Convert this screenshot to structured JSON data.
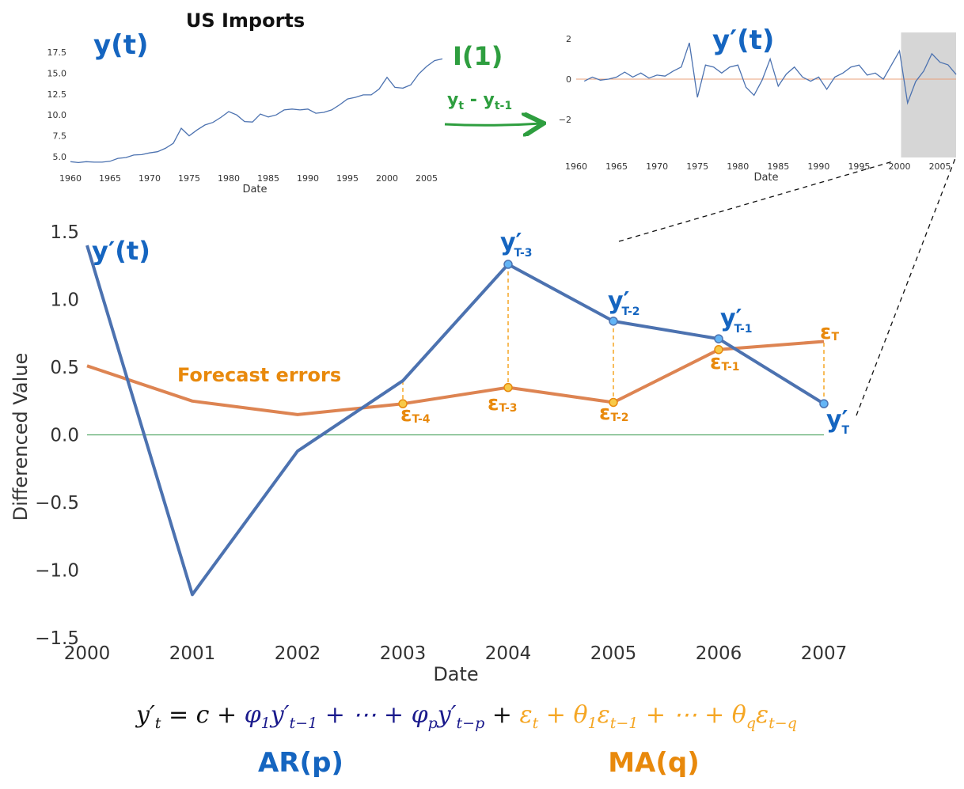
{
  "colors": {
    "line_blue": "#4c72b0",
    "line_orange": "#dd8452",
    "hand_blue": "#1565c0",
    "hand_green": "#2e9e3f",
    "hand_orange": "#e8890c",
    "zero_green": "#55a868",
    "zero_salmon": "#e8a07a",
    "shade": "#d6d6d6",
    "formula_navy": "#1a1a8c",
    "formula_orange": "#f5a623"
  },
  "chart_data": [
    {
      "type": "line",
      "title": "US Imports",
      "xlabel": "Date",
      "xlim": [
        1960,
        2007
      ],
      "ylim": [
        4.0,
        18.6
      ],
      "xticks": [
        1960,
        1965,
        1970,
        1975,
        1980,
        1985,
        1990,
        1995,
        2000,
        2005
      ],
      "yticks": [
        "5.0",
        "7.5",
        "10.0",
        "12.5",
        "15.0",
        "17.5"
      ],
      "yticks_values": [
        5.0,
        7.5,
        10.0,
        12.5,
        15.0,
        17.5
      ],
      "annotation": "y(t)",
      "series": [
        {
          "x": [
            1960,
            1961,
            1962,
            1963,
            1964,
            1965,
            1966,
            1967,
            1968,
            1969,
            1970,
            1971,
            1972,
            1973,
            1974,
            1975,
            1976,
            1977,
            1978,
            1979,
            1980,
            1981,
            1982,
            1983,
            1984,
            1985,
            1986,
            1987,
            1988,
            1989,
            1990,
            1991,
            1992,
            1993,
            1994,
            1995,
            1996,
            1997,
            1998,
            1999,
            2000,
            2001,
            2002,
            2003,
            2004,
            2005,
            2006,
            2007
          ],
          "values": [
            4.4,
            4.3,
            4.4,
            4.35,
            4.35,
            4.45,
            4.8,
            4.9,
            5.2,
            5.25,
            5.45,
            5.6,
            6.0,
            6.6,
            8.4,
            7.5,
            8.2,
            8.8,
            9.1,
            9.7,
            10.4,
            10.0,
            9.2,
            9.15,
            10.1,
            9.75,
            10.0,
            10.6,
            10.7,
            10.6,
            10.7,
            10.2,
            10.3,
            10.6,
            11.2,
            11.9,
            12.1,
            12.4,
            12.4,
            13.1,
            14.5,
            13.3,
            13.2,
            13.6,
            14.9,
            15.8,
            16.5,
            16.7
          ]
        }
      ]
    },
    {
      "type": "line",
      "title": "",
      "xlabel": "Date",
      "xlim": [
        1960,
        2007
      ],
      "ylim": [
        -3.9,
        2.3
      ],
      "xticks": [
        1960,
        1965,
        1970,
        1975,
        1980,
        1985,
        1990,
        1995,
        2000,
        2005
      ],
      "yticks": [
        "2",
        "0",
        "−2"
      ],
      "yticks_values": [
        2,
        0,
        -2
      ],
      "annotation": "y′(t)",
      "highlight_range": [
        2000,
        2007
      ],
      "series": [
        {
          "x": [
            1961,
            1962,
            1963,
            1964,
            1965,
            1966,
            1967,
            1968,
            1969,
            1970,
            1971,
            1972,
            1973,
            1974,
            1975,
            1976,
            1977,
            1978,
            1979,
            1980,
            1981,
            1982,
            1983,
            1984,
            1985,
            1986,
            1987,
            1988,
            1989,
            1990,
            1991,
            1992,
            1993,
            1994,
            1995,
            1996,
            1997,
            1998,
            1999,
            2000,
            2001,
            2002,
            2003,
            2004,
            2005,
            2006,
            2007
          ],
          "values": [
            -0.1,
            0.1,
            -0.05,
            0.0,
            0.1,
            0.35,
            0.1,
            0.3,
            0.05,
            0.2,
            0.15,
            0.4,
            0.6,
            1.8,
            -0.9,
            0.7,
            0.6,
            0.3,
            0.6,
            0.7,
            -0.4,
            -0.8,
            -0.05,
            1.0,
            -0.35,
            0.25,
            0.6,
            0.1,
            -0.1,
            0.1,
            -0.5,
            0.1,
            0.3,
            0.6,
            0.7,
            0.2,
            0.3,
            0.0,
            0.7,
            1.4,
            -1.18,
            -0.12,
            0.4,
            1.26,
            0.84,
            0.71,
            0.23
          ]
        }
      ]
    },
    {
      "type": "line",
      "title": "",
      "xlabel": "Date",
      "ylabel": "Differenced Value",
      "xlim": [
        2000,
        2007
      ],
      "ylim": [
        -1.5,
        1.5
      ],
      "xticks": [
        "2000",
        "2001",
        "2002",
        "2003",
        "2004",
        "2005",
        "2006",
        "2007"
      ],
      "xticks_values": [
        2000,
        2001,
        2002,
        2003,
        2004,
        2005,
        2006,
        2007
      ],
      "yticks": [
        "1.5",
        "1.0",
        "0.5",
        "0.0",
        "−0.5",
        "−1.0",
        "−1.5"
      ],
      "yticks_values": [
        1.5,
        1.0,
        0.5,
        0.0,
        -0.5,
        -1.0,
        -1.5
      ],
      "grid": false,
      "series": [
        {
          "name": "y′(t)",
          "x": [
            2000,
            2001,
            2002,
            2003,
            2004,
            2005,
            2006,
            2007
          ],
          "values": [
            1.4,
            -1.18,
            -0.12,
            0.4,
            1.26,
            0.84,
            0.71,
            0.23
          ]
        },
        {
          "name": "Forecast errors",
          "x": [
            2000,
            2001,
            2002,
            2003,
            2004,
            2005,
            2006,
            2007
          ],
          "values": [
            0.51,
            0.25,
            0.15,
            0.23,
            0.35,
            0.24,
            0.63,
            0.69
          ]
        }
      ],
      "markers": {
        "blue_x": [
          2004,
          2005,
          2006,
          2007
        ],
        "orange_x": [
          2003,
          2004,
          2005,
          2006
        ]
      }
    }
  ],
  "labels": {
    "top_left_title": "US Imports",
    "top_left_y": "y(t)",
    "transform": "I(1)",
    "diff_lhs": "y",
    "diff_lhs_sub": "t",
    "diff_minus": " - y",
    "diff_rhs_sub": "t-1",
    "top_right_y": "y′(t)",
    "main_y": "y′(t)",
    "forecast": "Forecast errors",
    "y_t3": "y′",
    "y_t3_sub": "T-3",
    "y_t2": "y′",
    "y_t2_sub": "T-2",
    "y_t1": "y′",
    "y_t1_sub": "T-1",
    "y_t": "y′",
    "y_t_sub": "T",
    "e_t4": "ε",
    "e_t4_sub": "T-4",
    "e_t3": "ε",
    "e_t3_sub": "T-3",
    "e_t2": "ε",
    "e_t2_sub": "T-2",
    "e_t1": "ε",
    "e_t1_sub": "T-1",
    "e_t": "ε",
    "e_t_sub": "T",
    "ar": "AR(p)",
    "ma": "MA(q)"
  },
  "formula": {
    "lhs": "y′",
    "lhs_sub": "t",
    "eq": " = c + ",
    "phi1": "φ",
    "phi1_sub": "1",
    "y1": "y′",
    "y1_sub": "t−1",
    "dots1": " + ⋯ + ",
    "phip": "φ",
    "phip_sub": "p",
    "yp": "y′",
    "yp_sub": "t−p",
    "plus": " + ",
    "eps": "ε",
    "eps_sub": "t",
    "plus2": " + ",
    "th1": "θ",
    "th1_sub": "1",
    "eps1": "ε",
    "eps1_sub": "t−1",
    "dots2": " + ⋯ + ",
    "thq": "θ",
    "thq_sub": "q",
    "epsq": "ε",
    "epsq_sub": "t−q"
  }
}
